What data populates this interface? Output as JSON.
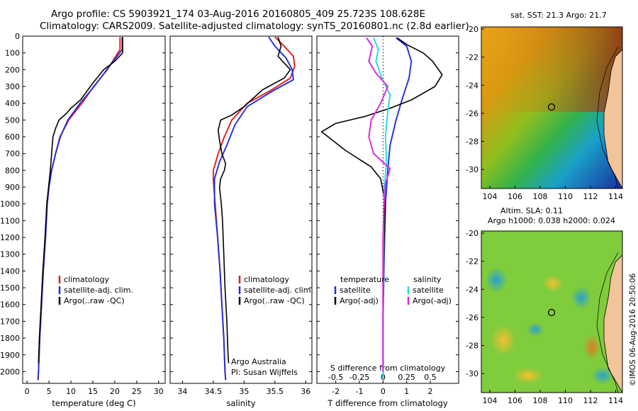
{
  "header": {
    "line1": "Argo profile: CS 5903921_174 03-Aug-2016 20160805_409 25.723S 108.628E",
    "line2": "Climatology: CARS2009. Satellite-adjusted climatology: synTS_20160801.nc (2.8d earlier)"
  },
  "colors": {
    "climatology": "#e41a1c",
    "satellite": "#1f2fe0",
    "argo": "#000000",
    "salinity_sat": "#22dddd",
    "salinity_argo": "#e020e0"
  },
  "chart_data": [
    {
      "type": "line",
      "xlabel": "temperature (deg C)",
      "ylabel": "",
      "xlim": [
        -1,
        31.5
      ],
      "ylim": [
        2070,
        0
      ],
      "xticks": [
        0,
        5,
        10,
        15,
        20,
        25,
        30
      ],
      "yticks": [
        0,
        100,
        200,
        300,
        400,
        500,
        600,
        700,
        800,
        900,
        1000,
        1100,
        1200,
        1300,
        1400,
        1500,
        1600,
        1700,
        1800,
        1900,
        2000
      ],
      "legend": [
        "climatology",
        "satellite-adj. clim.",
        "Argo(..raw -QC)"
      ],
      "series": [
        {
          "name": "climatology",
          "color": "#e41a1c",
          "points": [
            [
              21.2,
              5
            ],
            [
              21.2,
              80
            ],
            [
              18.3,
              200
            ],
            [
              15.2,
              300
            ],
            [
              12.5,
              400
            ],
            [
              9.5,
              500
            ],
            [
              7.5,
              600
            ],
            [
              6.5,
              700
            ],
            [
              5.6,
              800
            ],
            [
              5,
              900
            ],
            [
              4.6,
              1000
            ],
            [
              4.2,
              1200
            ],
            [
              3.7,
              1400
            ],
            [
              3.3,
              1600
            ],
            [
              2.9,
              1800
            ],
            [
              2.6,
              2000
            ],
            [
              2.5,
              2050
            ]
          ]
        },
        {
          "name": "satellite-adj. clim.",
          "color": "#1f2fe0",
          "points": [
            [
              21.7,
              5
            ],
            [
              21.7,
              80
            ],
            [
              18.2,
              200
            ],
            [
              15.3,
              300
            ],
            [
              12.1,
              400
            ],
            [
              9.3,
              500
            ],
            [
              7.6,
              600
            ],
            [
              6.5,
              700
            ],
            [
              5.6,
              800
            ],
            [
              5,
              900
            ],
            [
              4.6,
              1000
            ],
            [
              4.2,
              1200
            ],
            [
              3.7,
              1400
            ],
            [
              3.3,
              1600
            ],
            [
              2.9,
              1800
            ],
            [
              2.6,
              2000
            ],
            [
              2.5,
              2050
            ]
          ]
        },
        {
          "name": "Argo(..raw -QC)",
          "color": "#000000",
          "points": [
            [
              21.8,
              5
            ],
            [
              21.8,
              100
            ],
            [
              20,
              150
            ],
            [
              17.5,
              200
            ],
            [
              15,
              280
            ],
            [
              12.2,
              380
            ],
            [
              10,
              430
            ],
            [
              9,
              460
            ],
            [
              7.3,
              500
            ],
            [
              6.5,
              550
            ],
            [
              5.9,
              600
            ],
            [
              5.6,
              700
            ],
            [
              5.3,
              800
            ],
            [
              4.9,
              900
            ],
            [
              4.5,
              1000
            ],
            [
              4.1,
              1200
            ],
            [
              3.6,
              1400
            ],
            [
              3.2,
              1600
            ],
            [
              2.8,
              1800
            ],
            [
              2.6,
              1950
            ]
          ]
        }
      ]
    },
    {
      "type": "line",
      "xlabel": "salinity",
      "ylabel": "",
      "xlim": [
        33.8,
        36.1
      ],
      "ylim": [
        2070,
        0
      ],
      "xticks": [
        34,
        34.5,
        35,
        35.5,
        36
      ],
      "legend": [
        "climatology",
        "satellite-adj. clim.",
        "Argo(..raw -QC)"
      ],
      "series": [
        {
          "name": "climatology",
          "color": "#e41a1c",
          "points": [
            [
              35.5,
              5
            ],
            [
              35.65,
              60
            ],
            [
              35.8,
              120
            ],
            [
              35.82,
              180
            ],
            [
              35.75,
              250
            ],
            [
              35.45,
              320
            ],
            [
              35.05,
              400
            ],
            [
              34.8,
              500
            ],
            [
              34.68,
              600
            ],
            [
              34.58,
              700
            ],
            [
              34.5,
              800
            ],
            [
              34.5,
              860
            ],
            [
              34.53,
              1000
            ],
            [
              34.57,
              1200
            ],
            [
              34.61,
              1400
            ],
            [
              34.64,
              1600
            ],
            [
              34.67,
              1800
            ],
            [
              34.69,
              2000
            ],
            [
              34.7,
              2050
            ]
          ]
        },
        {
          "name": "satellite-adj. clim.",
          "color": "#1f2fe0",
          "points": [
            [
              35.4,
              5
            ],
            [
              35.5,
              60
            ],
            [
              35.68,
              130
            ],
            [
              35.78,
              200
            ],
            [
              35.8,
              260
            ],
            [
              35.45,
              330
            ],
            [
              35.05,
              420
            ],
            [
              34.85,
              530
            ],
            [
              34.72,
              650
            ],
            [
              34.6,
              750
            ],
            [
              34.52,
              850
            ],
            [
              34.52,
              1000
            ],
            [
              34.57,
              1200
            ],
            [
              34.61,
              1400
            ],
            [
              34.64,
              1600
            ],
            [
              34.67,
              1800
            ],
            [
              34.69,
              2000
            ],
            [
              34.7,
              2050
            ]
          ]
        },
        {
          "name": "Argo(..raw -QC)",
          "color": "#000000",
          "points": [
            [
              35.55,
              5
            ],
            [
              35.6,
              60
            ],
            [
              35.55,
              120
            ],
            [
              35.75,
              200
            ],
            [
              35.65,
              250
            ],
            [
              35.3,
              320
            ],
            [
              35,
              420
            ],
            [
              34.8,
              470
            ],
            [
              34.62,
              500
            ],
            [
              34.58,
              560
            ],
            [
              34.6,
              620
            ],
            [
              34.64,
              700
            ],
            [
              34.7,
              760
            ],
            [
              34.68,
              800
            ],
            [
              34.62,
              850
            ],
            [
              34.6,
              900
            ],
            [
              34.63,
              1000
            ],
            [
              34.65,
              1100
            ],
            [
              34.67,
              1300
            ],
            [
              34.69,
              1500
            ],
            [
              34.72,
              1700
            ],
            [
              34.74,
              1900
            ],
            [
              34.75,
              1950
            ]
          ]
        }
      ],
      "annotations": [
        "Argo Australia",
        "PI: Susan Wijffels"
      ]
    },
    {
      "type": "line",
      "xlabel": "T difference from climatology",
      "top_axis_label": "S difference from climatology",
      "xlim": [
        -2.8,
        3.2
      ],
      "top_xticks": [
        "-0.5",
        "-0.25",
        "0",
        "0.25",
        "0.5"
      ],
      "bottom_xticks": [
        "-2",
        "-1",
        "0",
        "1",
        "2"
      ],
      "legend_headers": [
        "temperature",
        "salinity"
      ],
      "legend": [
        "satellite",
        "Argo(-adj)",
        "satellite",
        "Argo(-adj)"
      ],
      "series": [
        {
          "name": "temperature satellite",
          "color": "#1f2fe0",
          "points": [
            [
              0.55,
              10
            ],
            [
              1.0,
              60
            ],
            [
              1.2,
              150
            ],
            [
              1.1,
              250
            ],
            [
              0.8,
              380
            ],
            [
              0.55,
              500
            ],
            [
              0.3,
              650
            ],
            [
              0.2,
              800
            ],
            [
              0.1,
              1000
            ],
            [
              0.05,
              1300
            ],
            [
              0,
              1700
            ],
            [
              0,
              2040
            ]
          ]
        },
        {
          "name": "temperature Argo(-adj)",
          "color": "#000000",
          "points": [
            [
              0.6,
              10
            ],
            [
              1,
              50
            ],
            [
              1.7,
              100
            ],
            [
              2.1,
              150
            ],
            [
              2.5,
              230
            ],
            [
              2.2,
              300
            ],
            [
              1.2,
              380
            ],
            [
              0.3,
              430
            ],
            [
              -0.8,
              480
            ],
            [
              -2.0,
              520
            ],
            [
              -2.6,
              570
            ],
            [
              -1.6,
              680
            ],
            [
              -0.5,
              780
            ],
            [
              -0.1,
              850
            ],
            [
              0.1,
              1000
            ],
            [
              0.05,
              1200
            ],
            [
              0,
              1500
            ],
            [
              0,
              2000
            ]
          ]
        },
        {
          "name": "salinity satellite",
          "color": "#22dddd",
          "points": [
            [
              -0.4,
              10
            ],
            [
              -0.2,
              80
            ],
            [
              -0.3,
              150
            ],
            [
              -0.05,
              250
            ],
            [
              0.3,
              350
            ],
            [
              0.2,
              450
            ],
            [
              0.1,
              600
            ],
            [
              0.15,
              750
            ],
            [
              0.05,
              900
            ],
            [
              0.02,
              1200
            ],
            [
              0,
              1600
            ],
            [
              0,
              2040
            ]
          ]
        },
        {
          "name": "salinity Argo(-adj)",
          "color": "#e020e0",
          "points": [
            [
              -0.7,
              10
            ],
            [
              -0.45,
              60
            ],
            [
              -0.6,
              150
            ],
            [
              -0.3,
              220
            ],
            [
              0.2,
              300
            ],
            [
              -0.1,
              400
            ],
            [
              -0.5,
              500
            ],
            [
              -0.6,
              600
            ],
            [
              -0.4,
              700
            ],
            [
              0.3,
              790
            ],
            [
              0.1,
              880
            ],
            [
              0.05,
              1000
            ],
            [
              0,
              1200
            ],
            [
              0,
              2000
            ]
          ]
        }
      ]
    }
  ],
  "map_top": {
    "title": "sat. SST: 21.3 Argo: 21.7",
    "yticks": [
      "-20",
      "-22",
      "-24",
      "-26",
      "-28",
      "-30"
    ],
    "xticks": [
      "104",
      "106",
      "108",
      "110",
      "112",
      "114"
    ]
  },
  "map_bottom": {
    "title1": "Altim. SLA: 0.11",
    "title2": "Argo h1000: 0.038 h2000: 0.024",
    "yticks": [
      "-20",
      "-22",
      "-24",
      "-26",
      "-28",
      "-30"
    ],
    "xticks": [
      "104",
      "106",
      "108",
      "110",
      "112",
      "114"
    ]
  },
  "footer_stamp": "©IMOS 06-Aug-2016 20:50:06"
}
